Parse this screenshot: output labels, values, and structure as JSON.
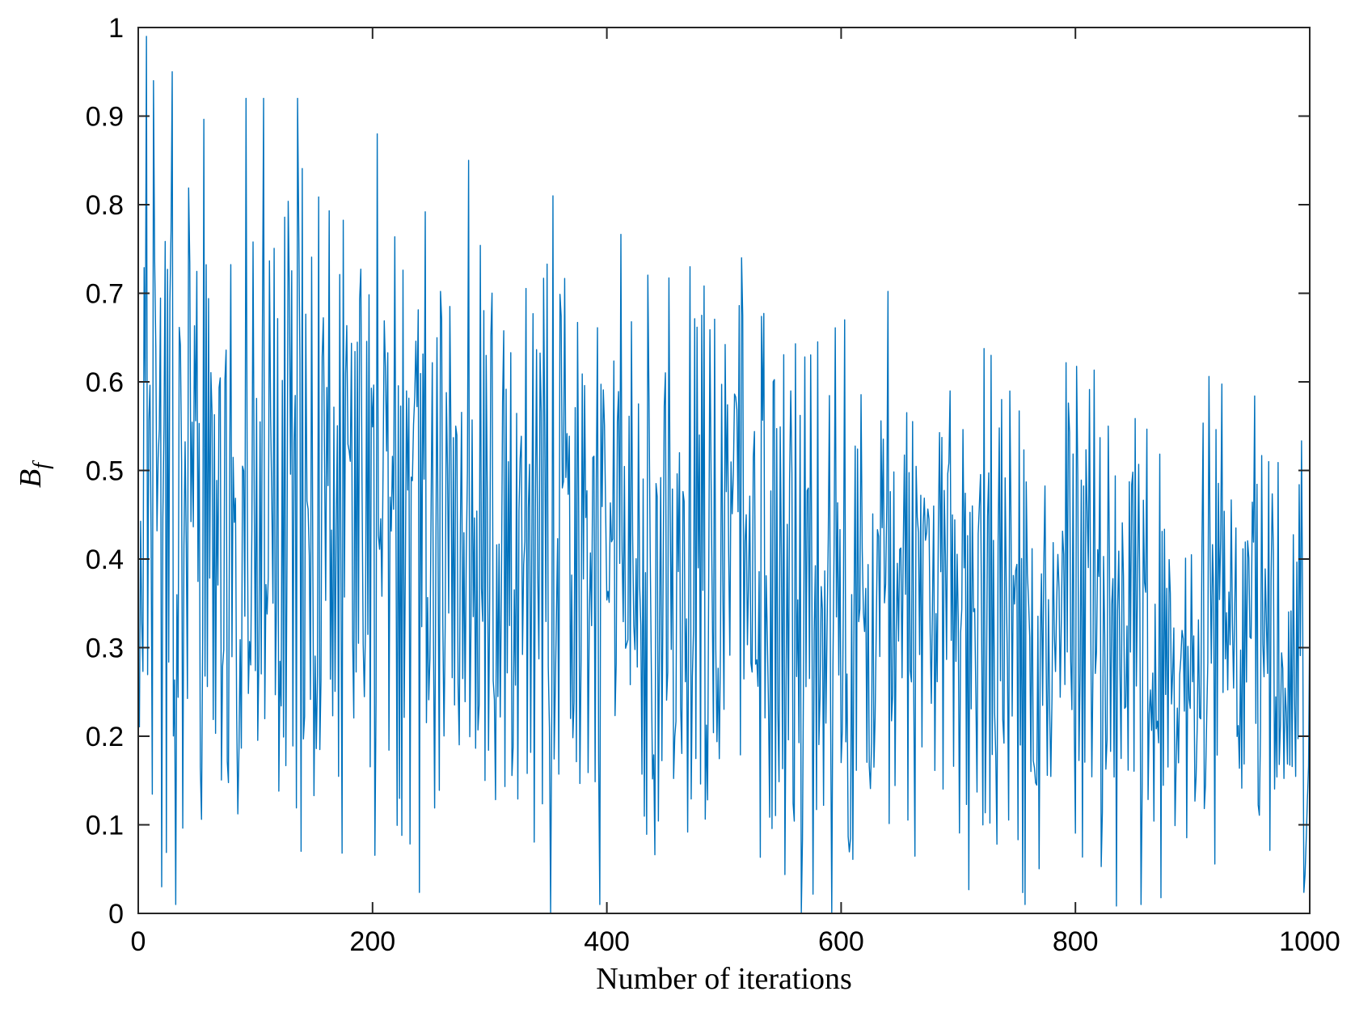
{
  "chart_data": {
    "type": "line",
    "title": "",
    "xlabel": "Number of iterations",
    "ylabel_main": "B",
    "ylabel_sub": "f",
    "xlim": [
      0,
      1000
    ],
    "ylim": [
      0,
      1
    ],
    "xticks": [
      0,
      200,
      400,
      600,
      800,
      1000
    ],
    "xtick_labels": [
      "0",
      "200",
      "400",
      "600",
      "800",
      "1000"
    ],
    "yticks": [
      0,
      0.1,
      0.2,
      0.3,
      0.4,
      0.5,
      0.6,
      0.7,
      0.8,
      0.9,
      1
    ],
    "ytick_labels": [
      "0",
      "0.1",
      "0.2",
      "0.3",
      "0.4",
      "0.5",
      "0.6",
      "0.7",
      "0.8",
      "0.9",
      "1"
    ],
    "grid": false,
    "box": true,
    "line_color": "#0072BD",
    "series": [
      {
        "description": "1000 iterations of a chaotic-looking signal; values oscillate roughly between 0 and 1, with the upper envelope decaying from ~1.0 near iteration 0 to ~0.5 near iteration 1000 and the mean drifting from ~0.45 to ~0.3",
        "x_start": 1,
        "x_end": 1000,
        "anchors": [
          {
            "x": 1,
            "y": 0.21
          },
          {
            "x": 7,
            "y": 0.99
          },
          {
            "x": 13,
            "y": 0.94
          },
          {
            "x": 20,
            "y": 0.03
          },
          {
            "x": 29,
            "y": 0.95
          },
          {
            "x": 32,
            "y": 0.01
          },
          {
            "x": 92,
            "y": 0.92
          },
          {
            "x": 107,
            "y": 0.92
          },
          {
            "x": 136,
            "y": 0.92
          },
          {
            "x": 204,
            "y": 0.88
          },
          {
            "x": 282,
            "y": 0.85
          },
          {
            "x": 352,
            "y": 0.0
          },
          {
            "x": 354,
            "y": 0.81
          },
          {
            "x": 394,
            "y": 0.01
          },
          {
            "x": 471,
            "y": 0.73
          },
          {
            "x": 515,
            "y": 0.74
          },
          {
            "x": 566,
            "y": 0.0
          },
          {
            "x": 592,
            "y": 0.0
          },
          {
            "x": 603,
            "y": 0.67
          },
          {
            "x": 728,
            "y": 0.63
          },
          {
            "x": 757,
            "y": 0.01
          },
          {
            "x": 828,
            "y": 0.55
          },
          {
            "x": 856,
            "y": 0.01
          },
          {
            "x": 965,
            "y": 0.51
          },
          {
            "x": 1000,
            "y": 0.34
          }
        ]
      }
    ]
  }
}
